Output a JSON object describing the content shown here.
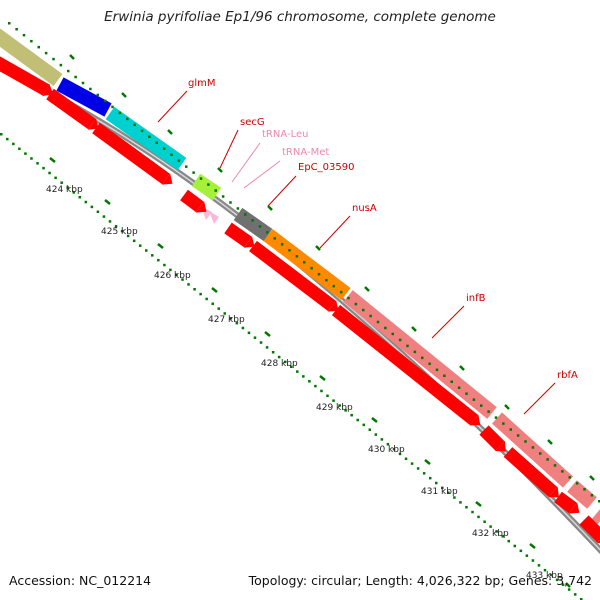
{
  "title": "Erwinia pyrifoliae Ep1/96 chromosome, complete genome",
  "footer": {
    "accession": "Accession: NC_012214",
    "summary": "Topology: circular; Length: 4,026,322 bp; Genes: 3,742"
  },
  "colors": {
    "cds_red": "#ff0000",
    "label_red": "#cc0000",
    "label_pink": "#ee88aa",
    "trna_pink": "#ffb6d9",
    "backbone": "#888888",
    "tick_green": "#007700",
    "scale_label": "#222222"
  },
  "features": [
    {
      "name": "",
      "color": "#c0bf75"
    },
    {
      "name": "",
      "color": "#0000e6"
    },
    {
      "name": "glmM",
      "color": "#00d0d0"
    },
    {
      "name": "secG",
      "color": "#a6f03a"
    },
    {
      "name": "tRNA-Leu",
      "color": "#ffb6d9"
    },
    {
      "name": "tRNA-Met",
      "color": "#ffb6d9"
    },
    {
      "name": "EpC_03590",
      "color": "#707070"
    },
    {
      "name": "nusA",
      "color": "#ff8a00"
    },
    {
      "name": "infB",
      "color": "#f08080"
    },
    {
      "name": "rbfA",
      "color": "#f08080"
    }
  ],
  "scale_labels": [
    "424 kbp",
    "425 kbp",
    "426 kbp",
    "427 kbp",
    "428 kbp",
    "429 kbp",
    "430 kbp",
    "431 kbp",
    "432 kbp",
    "433 kbp"
  ]
}
